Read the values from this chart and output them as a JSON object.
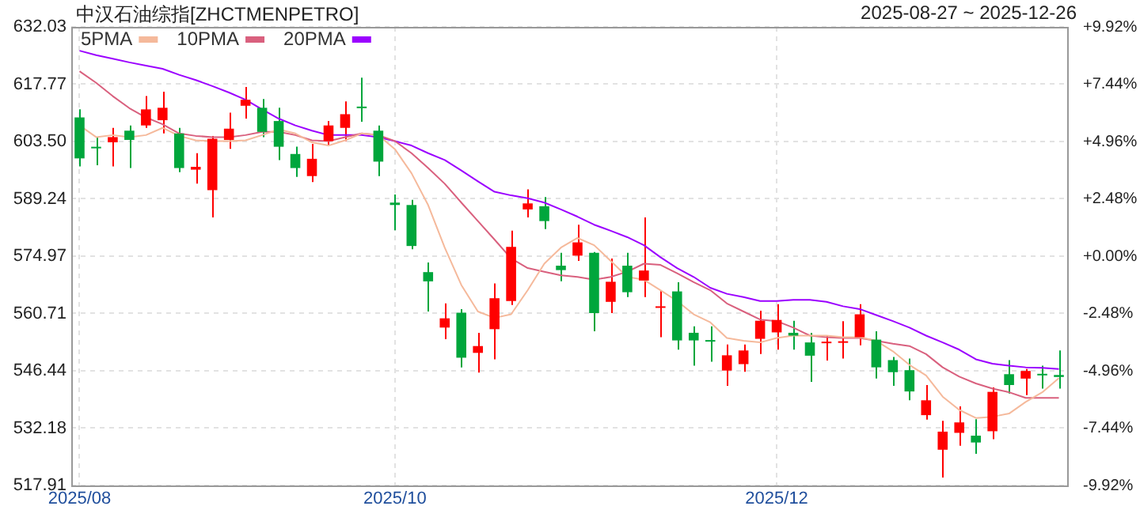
{
  "chart_data": {
    "type": "candlestick",
    "title": "中汉石油综指[ZHCTMENPETRO]",
    "subtitle": "2025-08-27 ~ 2025-12-26",
    "categories": [
      "2025/08",
      null,
      null,
      null,
      null,
      null,
      null,
      null,
      null,
      null,
      null,
      null,
      null,
      null,
      null,
      null,
      null,
      null,
      null,
      "2025/10",
      null,
      null,
      null,
      null,
      null,
      null,
      null,
      null,
      null,
      null,
      null,
      null,
      null,
      null,
      null,
      null,
      null,
      null,
      null,
      null,
      null,
      null,
      "2025/12",
      null,
      null,
      null,
      null,
      null,
      null,
      null,
      null,
      null,
      null,
      null,
      null,
      null,
      null,
      null,
      null,
      null
    ],
    "ohlc": [
      [
        609.5,
        611.5,
        597.3,
        599.3
      ],
      [
        602.0,
        604.6,
        597.6,
        601.8
      ],
      [
        603.3,
        606.9,
        597.3,
        604.6
      ],
      [
        606.2,
        607.5,
        596.9,
        603.9
      ],
      [
        607.5,
        614.8,
        606.9,
        611.5
      ],
      [
        608.8,
        615.9,
        605.5,
        611.9
      ],
      [
        605.5,
        606.9,
        595.9,
        596.9
      ],
      [
        596.5,
        600.6,
        593.0,
        597.2
      ],
      [
        591.4,
        604.9,
        584.6,
        604.2
      ],
      [
        603.9,
        610.7,
        601.7,
        606.7
      ],
      [
        612.4,
        617.1,
        609.2,
        613.9
      ],
      [
        611.9,
        614.1,
        604.6,
        605.9
      ],
      [
        608.6,
        611.9,
        598.9,
        602.2
      ],
      [
        600.4,
        602.2,
        594.7,
        596.9
      ],
      [
        594.9,
        602.9,
        593.4,
        599.2
      ],
      [
        603.6,
        608.6,
        602.5,
        607.5
      ],
      [
        606.9,
        613.5,
        603.6,
        610.3
      ],
      [
        612.0,
        619.4,
        608.4,
        611.8
      ],
      [
        606.2,
        607.5,
        594.9,
        598.5
      ],
      [
        588.3,
        590.3,
        581.4,
        587.7
      ],
      [
        587.7,
        589.0,
        576.7,
        577.5
      ],
      [
        571.0,
        573.4,
        561.2,
        568.7
      ],
      [
        557.2,
        563.2,
        554.3,
        559.5
      ],
      [
        560.9,
        561.8,
        547.3,
        549.7
      ],
      [
        550.9,
        555.9,
        546.0,
        552.6
      ],
      [
        556.8,
        568.2,
        549.3,
        564.5
      ],
      [
        563.8,
        581.3,
        562.8,
        577.3
      ],
      [
        586.6,
        591.6,
        584.6,
        588.1
      ],
      [
        587.4,
        589.7,
        581.7,
        583.7
      ],
      [
        572.6,
        575.8,
        568.7,
        571.5
      ],
      [
        575.1,
        582.8,
        573.8,
        578.4
      ],
      [
        575.8,
        576.0,
        556.3,
        560.8
      ],
      [
        563.6,
        574.4,
        560.8,
        568.6
      ],
      [
        572.6,
        575.8,
        564.8,
        566.0
      ],
      [
        568.9,
        584.6,
        564.8,
        571.4
      ],
      [
        562.1,
        566.5,
        554.8,
        562.3
      ],
      [
        566.2,
        568.5,
        551.7,
        554.0
      ],
      [
        555.9,
        557.5,
        547.7,
        554.0
      ],
      [
        553.9,
        557.5,
        548.7,
        553.7
      ],
      [
        546.5,
        553.0,
        542.7,
        550.3
      ],
      [
        548.1,
        553.0,
        546.2,
        551.5
      ],
      [
        554.4,
        561.4,
        550.6,
        558.9
      ],
      [
        556.0,
        563.0,
        551.7,
        559.1
      ],
      [
        555.9,
        558.9,
        551.7,
        555.2
      ],
      [
        553.5,
        555.9,
        543.7,
        550.2
      ],
      [
        553.3,
        555.2,
        549.0,
        553.5
      ],
      [
        553.4,
        558.8,
        549.5,
        553.6
      ],
      [
        554.8,
        563.0,
        552.8,
        560.5
      ],
      [
        554.2,
        556.3,
        544.5,
        547.3
      ],
      [
        549.1,
        549.9,
        542.7,
        546.1
      ],
      [
        546.6,
        549.5,
        539.1,
        541.3
      ],
      [
        535.4,
        542.9,
        534.3,
        539.1
      ],
      [
        526.8,
        534.0,
        519.9,
        531.3
      ],
      [
        531.0,
        537.6,
        527.8,
        533.6
      ],
      [
        530.3,
        534.4,
        525.8,
        528.6
      ],
      [
        531.4,
        542.3,
        529.4,
        541.2
      ],
      [
        545.6,
        549.1,
        540.8,
        542.9
      ],
      [
        544.5,
        546.9,
        540.4,
        546.4
      ],
      [
        545.5,
        547.7,
        542.0,
        545.3
      ],
      [
        545.4,
        551.5,
        542.0,
        544.9
      ]
    ],
    "colors": [
      "#00a63c",
      "#00a63c",
      "#ff0000",
      "#00a63c",
      "#ff0000",
      "#ff0000",
      "#00a63c",
      "#ff0000",
      "#ff0000",
      "#ff0000",
      "#ff0000",
      "#00a63c",
      "#00a63c",
      "#00a63c",
      "#ff0000",
      "#ff0000",
      "#ff0000",
      "#00a63c",
      "#00a63c",
      "#00a63c",
      "#00a63c",
      "#00a63c",
      "#ff0000",
      "#00a63c",
      "#ff0000",
      "#ff0000",
      "#ff0000",
      "#ff0000",
      "#00a63c",
      "#00a63c",
      "#ff0000",
      "#00a63c",
      "#ff0000",
      "#00a63c",
      "#ff0000",
      "#ff0000",
      "#00a63c",
      "#00a63c",
      "#00a63c",
      "#ff0000",
      "#ff0000",
      "#ff0000",
      "#ff0000",
      "#00a63c",
      "#00a63c",
      "#ff0000",
      "#ff0000",
      "#ff0000",
      "#00a63c",
      "#00a63c",
      "#00a63c",
      "#ff0000",
      "#ff0000",
      "#ff0000",
      "#00a63c",
      "#ff0000",
      "#00a63c",
      "#ff0000",
      "#00a63c",
      "#00a63c"
    ],
    "series": [
      {
        "name": "5PMA",
        "type": "line",
        "color": "#f5b99b",
        "values": [
          607.5,
          604.6,
          605.1,
          604.6,
          605.1,
          606.9,
          604.9,
          603.8,
          603.6,
          603.6,
          603.8,
          605.1,
          606.5,
          605.5,
          603.3,
          602.5,
          603.8,
          605.5,
          605.1,
          601.6,
          595.6,
          587.7,
          577.1,
          567.8,
          561.2,
          559.6,
          560.5,
          566.5,
          573.1,
          577.1,
          579.5,
          577.7,
          573.8,
          569.8,
          569.1,
          566.5,
          563.8,
          560.5,
          558.5,
          554.6,
          553.9,
          553.5,
          554.6,
          555.2,
          555.2,
          555.2,
          554.8,
          554.8,
          553.9,
          551.3,
          547.9,
          545.3,
          540.0,
          536.7,
          534.7,
          535.0,
          535.8,
          538.7,
          541.1,
          544.6
        ]
      },
      {
        "name": "10PMA",
        "type": "line",
        "color": "#d9607e",
        "values": [
          621.0,
          618.1,
          614.8,
          611.8,
          609.5,
          607.8,
          605.5,
          604.9,
          604.6,
          604.6,
          605.1,
          605.9,
          605.9,
          605.1,
          603.8,
          603.6,
          604.6,
          605.5,
          605.1,
          603.6,
          600.6,
          596.9,
          593.0,
          588.3,
          583.7,
          579.1,
          574.4,
          572.0,
          571.1,
          570.2,
          569.8,
          569.1,
          569.8,
          571.1,
          573.1,
          572.8,
          570.7,
          568.5,
          566.5,
          563.2,
          561.2,
          559.2,
          558.8,
          557.2,
          555.2,
          554.8,
          554.6,
          554.6,
          553.9,
          553.2,
          552.6,
          550.6,
          547.3,
          545.0,
          543.3,
          542.0,
          541.1,
          539.7,
          539.7,
          539.7
        ]
      },
      {
        "name": "20PMA",
        "type": "line",
        "color": "#9b00ff",
        "values": [
          626.1,
          625.0,
          624.1,
          623.2,
          622.4,
          621.6,
          620.1,
          618.8,
          617.3,
          615.7,
          613.9,
          611.5,
          609.2,
          607.5,
          606.2,
          605.1,
          605.1,
          605.1,
          604.6,
          603.6,
          602.5,
          600.6,
          598.9,
          596.3,
          593.6,
          591.0,
          590.1,
          589.4,
          588.3,
          586.6,
          584.8,
          582.8,
          581.3,
          579.7,
          577.7,
          574.7,
          572.0,
          569.8,
          567.1,
          565.6,
          564.8,
          563.8,
          563.8,
          564.1,
          564.1,
          563.6,
          562.5,
          561.8,
          560.3,
          558.8,
          557.2,
          555.2,
          553.5,
          551.7,
          549.3,
          548.2,
          547.7,
          547.3,
          547.2,
          546.9
        ]
      }
    ],
    "ylim": [
      517.91,
      632.03
    ],
    "yticks": [
      {
        "value": 517.91,
        "label": "517.91"
      },
      {
        "value": 532.18,
        "label": "532.18"
      },
      {
        "value": 546.44,
        "label": "546.44"
      },
      {
        "value": 560.71,
        "label": "560.71"
      },
      {
        "value": 574.97,
        "label": "574.97"
      },
      {
        "value": 589.24,
        "label": "589.24"
      },
      {
        "value": 603.5,
        "label": "603.50"
      },
      {
        "value": 617.77,
        "label": "617.77"
      },
      {
        "value": 632.03,
        "label": "632.03"
      }
    ],
    "y2lim": [
      -9.92,
      9.92
    ],
    "y2ticks": [
      {
        "value": -9.92,
        "label": "-9.92%"
      },
      {
        "value": -7.44,
        "label": "-7.44%"
      },
      {
        "value": -4.96,
        "label": "-4.96%"
      },
      {
        "value": -2.48,
        "label": "-2.48%"
      },
      {
        "value": 0,
        "label": "+0.00%"
      },
      {
        "value": 2.48,
        "label": "+2.48%"
      },
      {
        "value": 4.96,
        "label": "+4.96%"
      },
      {
        "value": 7.44,
        "label": "+7.44%"
      },
      {
        "value": 9.92,
        "label": "+9.92%"
      }
    ],
    "grid": true,
    "legend": "top left"
  }
}
